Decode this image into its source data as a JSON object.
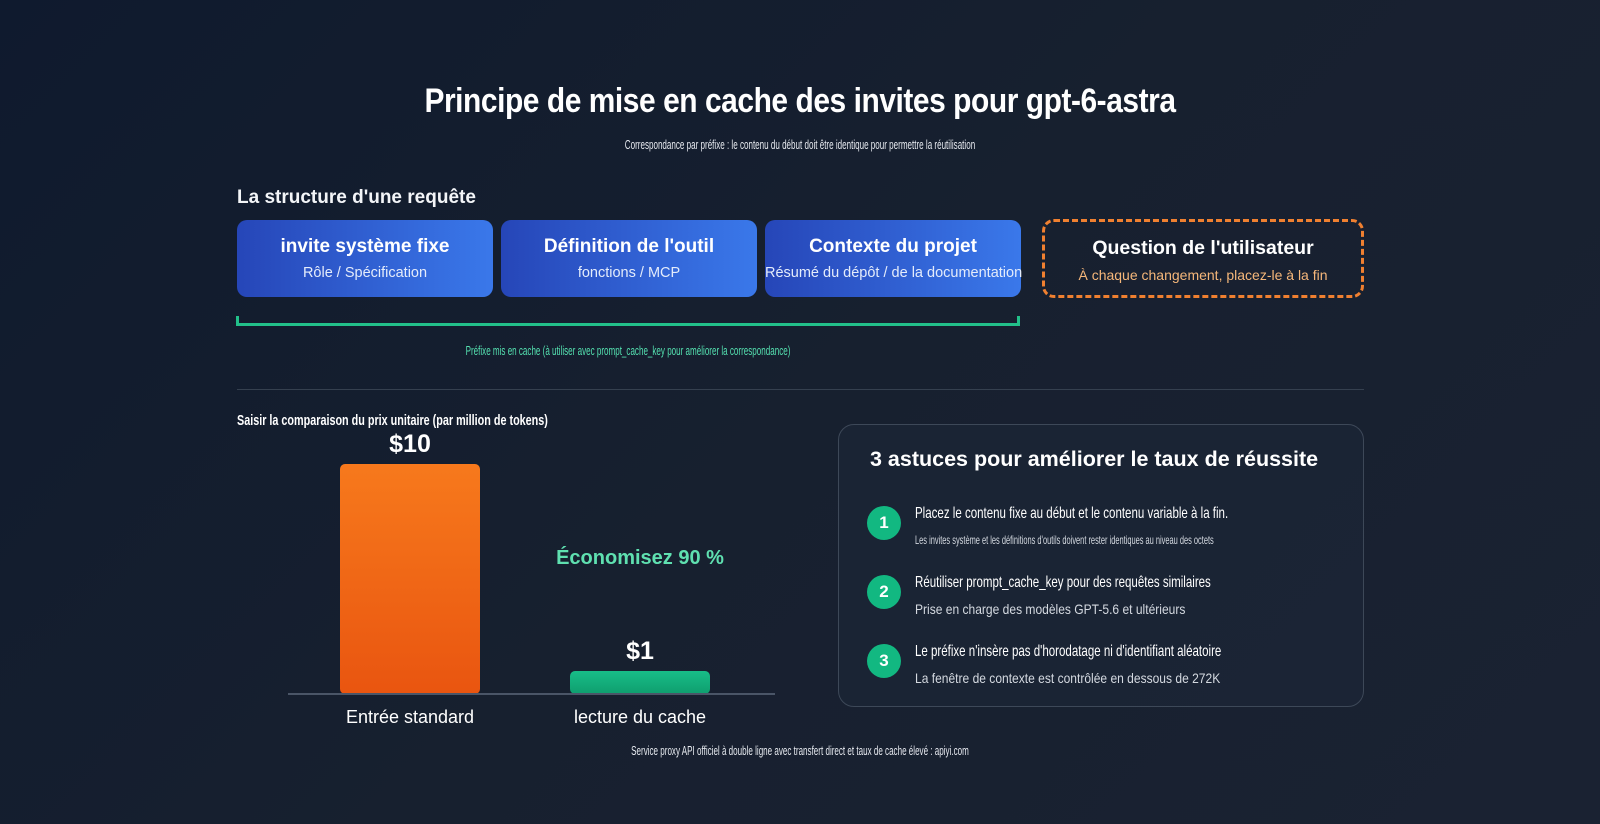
{
  "title": "Principe de mise en cache des invites pour gpt-6-astra",
  "subtitle": "Correspondance par préfixe : le contenu du début doit être identique pour permettre la réutilisation",
  "structure": {
    "label": "La structure d'une requête",
    "blocks": [
      {
        "title": "invite système fixe",
        "subtitle": "Rôle / Spécification"
      },
      {
        "title": "Définition de l'outil",
        "subtitle": "fonctions / MCP"
      },
      {
        "title": "Contexte du projet",
        "subtitle": "Résumé du dépôt / de la documentation"
      }
    ],
    "question": {
      "title": "Question de l'utilisateur",
      "subtitle": "À chaque changement, placez-le à la fin"
    },
    "prefix_label": "Préfixe mis en cache (à utiliser avec prompt_cache_key pour améliorer la correspondance)"
  },
  "chart_data": {
    "type": "bar",
    "title": "Saisir la comparaison du prix unitaire (par million de tokens)",
    "categories": [
      "Entrée standard",
      "lecture du cache"
    ],
    "values": [
      10,
      1
    ],
    "value_labels": [
      "$10",
      "$1"
    ],
    "colors": [
      "#f06a18",
      "#14b07c"
    ],
    "annotation": "Économisez 90 %",
    "ylim": [
      0,
      10
    ]
  },
  "tips": {
    "title": "3 astuces pour améliorer le taux de réussite",
    "items": [
      {
        "num": "1",
        "title": "Placez le contenu fixe au début et le contenu variable à la fin.",
        "sub": "Les invites système et les définitions d'outils doivent rester identiques au niveau des octets"
      },
      {
        "num": "2",
        "title": "Réutiliser prompt_cache_key pour des requêtes similaires",
        "sub": "Prise en charge des modèles GPT-5.6 et ultérieurs"
      },
      {
        "num": "3",
        "title": "Le préfixe n'insère pas d'horodatage ni d'identifiant aléatoire",
        "sub": "La fenêtre de contexte est contrôlée en dessous de 272K"
      }
    ]
  },
  "footer": "Service proxy API officiel à double ligne avec transfert direct et taux de cache élevé : apiyi.com"
}
